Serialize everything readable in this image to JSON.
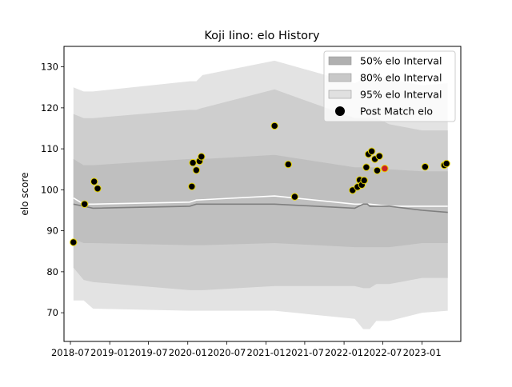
{
  "chart_data": {
    "type": "line",
    "title": "Koji Iino: elo History",
    "xlabel": "",
    "ylabel": "elo score",
    "xlim": [
      "2018-06-01",
      "2023-07-01"
    ],
    "ylim": [
      63,
      135
    ],
    "x_ticks": [
      "2018-07",
      "2019-01",
      "2019-07",
      "2020-01",
      "2020-07",
      "2021-01",
      "2021-07",
      "2022-01",
      "2022-07",
      "2023-01"
    ],
    "y_ticks": [
      70,
      80,
      90,
      100,
      110,
      120,
      130
    ],
    "grid": false,
    "legend_position": "top-right",
    "legend": [
      {
        "label": "50% elo Interval",
        "kind": "patch",
        "color": "#b0b0b0"
      },
      {
        "label": "80% elo Interval",
        "kind": "patch",
        "color": "#c8c8c8"
      },
      {
        "label": "95% elo Interval",
        "kind": "patch",
        "color": "#e0e0e0"
      },
      {
        "label": "Post Match elo",
        "kind": "marker",
        "color": "#000000"
      }
    ],
    "bands": [
      {
        "name": "95% elo Interval",
        "color": "#e3e3e3",
        "x": [
          "2018-07-15",
          "2018-09-01",
          "2018-10-15",
          "2020-01-10",
          "2020-02-10",
          "2020-03-10",
          "2021-02-10",
          "2022-02-20",
          "2022-04-01",
          "2022-05-01",
          "2022-06-01",
          "2022-08-01",
          "2023-01-01",
          "2023-05-01"
        ],
        "upper": [
          125,
          124,
          124,
          126.5,
          126.5,
          128,
          131.5,
          126,
          127,
          127,
          127,
          127,
          125.5,
          126
        ],
        "lower": [
          73,
          73,
          71,
          70.5,
          70.5,
          70.5,
          70.5,
          68.5,
          66,
          66,
          68,
          68,
          70,
          70.5
        ]
      },
      {
        "name": "80% elo Interval",
        "color": "#cecece",
        "x": [
          "2018-07-15",
          "2018-09-01",
          "2018-10-15",
          "2020-01-10",
          "2020-02-10",
          "2020-03-10",
          "2021-02-10",
          "2022-02-20",
          "2022-04-01",
          "2022-05-01",
          "2022-06-01",
          "2022-08-01",
          "2023-01-01",
          "2023-05-01"
        ],
        "upper": [
          118.5,
          117.5,
          117.5,
          119.5,
          119.5,
          120,
          124.5,
          117.5,
          117.5,
          117.5,
          117.5,
          116,
          114.5,
          114.5
        ],
        "lower": [
          81,
          78,
          77.5,
          75.5,
          75.5,
          75.5,
          76.5,
          76.5,
          76,
          76,
          77,
          77,
          78.5,
          78.5
        ]
      },
      {
        "name": "50% elo Interval",
        "color": "#bfbfbf",
        "x": [
          "2018-07-15",
          "2018-09-01",
          "2018-10-15",
          "2020-01-10",
          "2020-02-10",
          "2020-03-10",
          "2021-02-10",
          "2022-02-20",
          "2022-04-01",
          "2022-05-01",
          "2022-06-01",
          "2022-08-01",
          "2023-01-01",
          "2023-05-01"
        ],
        "upper": [
          107.5,
          106,
          106,
          107.5,
          107.5,
          107.5,
          108.5,
          105.5,
          105.5,
          105.5,
          105.5,
          105,
          104.5,
          104.5
        ],
        "lower": [
          88,
          87,
          87,
          86.5,
          86.5,
          86.5,
          87,
          86,
          86,
          86,
          86,
          86,
          87,
          87
        ]
      }
    ],
    "series": [
      {
        "role": "mean",
        "color": "#ffffff",
        "x": [
          "2018-07-15",
          "2018-09-01",
          "2018-10-15",
          "2020-01-10",
          "2020-02-10",
          "2021-02-10",
          "2022-02-20",
          "2022-05-01",
          "2022-08-01",
          "2023-01-01",
          "2023-05-01"
        ],
        "y": [
          98,
          96.5,
          96.5,
          97,
          97.5,
          98.5,
          96.5,
          96.5,
          96,
          96,
          96
        ]
      },
      {
        "role": "median",
        "color": "#7f7f7f",
        "x": [
          "2018-07-15",
          "2018-09-01",
          "2018-10-15",
          "2020-01-10",
          "2020-02-10",
          "2021-02-10",
          "2022-02-20",
          "2022-04-01",
          "2022-04-20",
          "2022-05-01",
          "2022-08-01",
          "2023-01-01",
          "2023-05-01"
        ],
        "y": [
          96.5,
          96,
          95.5,
          96,
          96.5,
          96.5,
          95.5,
          96.5,
          96.5,
          96,
          96,
          95,
          94.5
        ]
      }
    ],
    "points": {
      "name": "Post Match elo",
      "x": [
        "2018-07-15",
        "2018-09-05",
        "2018-10-20",
        "2018-11-05",
        "2020-01-20",
        "2020-01-25",
        "2020-02-10",
        "2020-02-25",
        "2020-03-05",
        "2021-02-10",
        "2021-04-15",
        "2021-05-15",
        "2022-02-10",
        "2022-03-05",
        "2022-03-15",
        "2022-03-25",
        "2022-04-05",
        "2022-04-15",
        "2022-04-25",
        "2022-05-10",
        "2022-05-25",
        "2022-06-05",
        "2022-06-15",
        "2022-07-10",
        "2023-01-15",
        "2023-04-15",
        "2023-04-25"
      ],
      "y": [
        87.2,
        96.5,
        102,
        100.3,
        100.8,
        106.6,
        104.8,
        107,
        108.1,
        115.6,
        106.2,
        98.3,
        99.9,
        100.7,
        102.4,
        101.2,
        102.3,
        105.5,
        108.7,
        109.4,
        107.5,
        104.7,
        108.2,
        105.2,
        105.6,
        106,
        106.4
      ],
      "colors": [
        "#000000",
        "#000000",
        "#000000",
        "#000000",
        "#000000",
        "#000000",
        "#000000",
        "#000000",
        "#000000",
        "#000000",
        "#000000",
        "#000000",
        "#000000",
        "#000000",
        "#000000",
        "#000000",
        "#000000",
        "#000000",
        "#000000",
        "#000000",
        "#000000",
        "#000000",
        "#000000",
        "#cc2222",
        "#000000",
        "#000000",
        "#000000"
      ],
      "edge_color": "#e8d600"
    }
  }
}
